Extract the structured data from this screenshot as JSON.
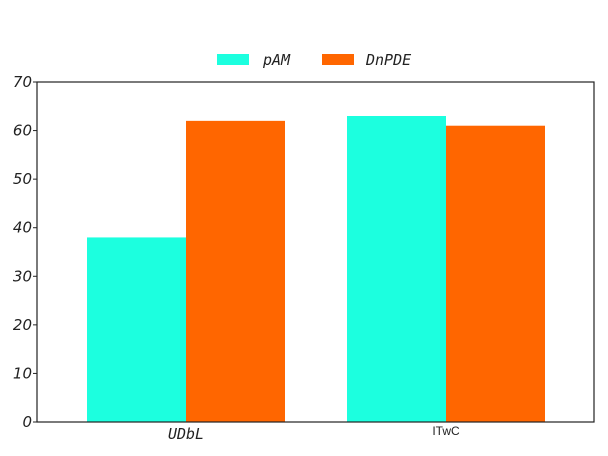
{
  "chart_data": {
    "type": "bar",
    "title": "",
    "xlabel": "",
    "ylabel": "",
    "categories": [
      "UDbL",
      "ITwC"
    ],
    "series": [
      {
        "name": "pAM",
        "values": [
          38,
          63
        ],
        "color": "#1cffdf"
      },
      {
        "name": "DnPDE",
        "values": [
          62,
          61
        ],
        "color": "#ff6600"
      }
    ],
    "ylim": [
      0,
      70
    ],
    "yticks": [
      0,
      10,
      20,
      30,
      40,
      50,
      60,
      70
    ],
    "grid": false,
    "legend_position": "top-center"
  }
}
